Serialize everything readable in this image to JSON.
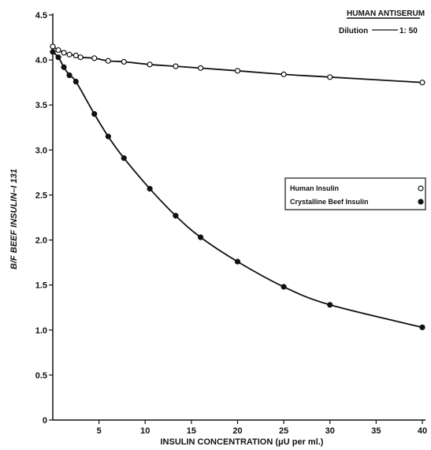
{
  "chart_data": {
    "type": "scatter",
    "title": "",
    "xlabel": "INSULIN   CONCENTRATION  (μU per ml.)",
    "ylabel": "B/F  BEEF  INSULIN–I 131",
    "xlim": [
      0,
      40
    ],
    "ylim": [
      0,
      4.5
    ],
    "x_ticks": [
      5,
      10,
      15,
      20,
      25,
      30,
      35,
      40
    ],
    "x_tick_labels": [
      "5",
      "10",
      "15",
      "20",
      "25",
      "30",
      "35",
      "40"
    ],
    "y_ticks": [
      0,
      0.5,
      1.0,
      1.5,
      2.0,
      2.5,
      3.0,
      3.5,
      4.0,
      4.5
    ],
    "y_tick_labels": [
      "0",
      "0.5",
      "1.0",
      "1.5",
      "2.0",
      "2.5",
      "3.0",
      "3.5",
      "4.0",
      "4.5"
    ],
    "grid": false,
    "legend_position": "right",
    "annotation": {
      "title": "HUMAN  ANTISERUM",
      "dilution_label": "Dilution",
      "dilution_value": "1: 50"
    },
    "series": [
      {
        "name": "Human Insulin",
        "marker": "open-circle",
        "x": [
          0,
          0.6,
          1.2,
          1.8,
          2.5,
          3.0,
          4.5,
          6.0,
          7.7,
          10.5,
          13.3,
          16.0,
          20.0,
          25.0,
          30.0,
          40.0
        ],
        "y": [
          4.15,
          4.11,
          4.08,
          4.06,
          4.05,
          4.03,
          4.02,
          3.99,
          3.98,
          3.95,
          3.93,
          3.91,
          3.88,
          3.84,
          3.81,
          3.75
        ]
      },
      {
        "name": "Crystalline Beef Insulin",
        "marker": "filled-circle",
        "x": [
          0,
          0.6,
          1.2,
          1.8,
          2.5,
          4.5,
          6.0,
          7.7,
          10.5,
          13.3,
          16.0,
          20.0,
          25.0,
          30.0,
          40.0
        ],
        "y": [
          4.09,
          4.03,
          3.92,
          3.83,
          3.76,
          3.4,
          3.15,
          2.91,
          2.57,
          2.27,
          2.03,
          1.76,
          1.48,
          1.28,
          1.03
        ]
      }
    ]
  }
}
